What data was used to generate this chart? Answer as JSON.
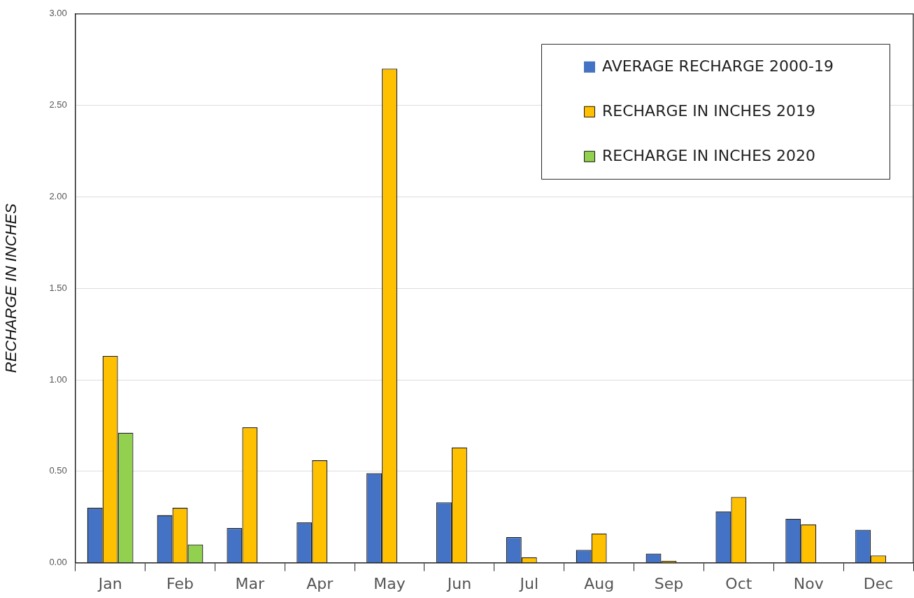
{
  "chart_data": {
    "type": "bar",
    "ylabel": "RECHARGE IN INCHES",
    "categories": [
      "Jan",
      "Feb",
      "Mar",
      "Apr",
      "May",
      "Jun",
      "Jul",
      "Aug",
      "Sep",
      "Oct",
      "Nov",
      "Dec"
    ],
    "series": [
      {
        "name": "AVERAGE RECHARGE 2000-19",
        "color": "#4472c4",
        "values": [
          0.3,
          0.26,
          0.19,
          0.22,
          0.49,
          0.33,
          0.14,
          0.07,
          0.05,
          0.28,
          0.24,
          0.18
        ]
      },
      {
        "name": "RECHARGE IN INCHES 2019",
        "color": "#ffc000",
        "values": [
          1.13,
          0.3,
          0.74,
          0.56,
          2.7,
          0.63,
          0.03,
          0.16,
          0.01,
          0.36,
          0.21,
          0.04
        ]
      },
      {
        "name": "RECHARGE IN INCHES 2020",
        "color": "#92d050",
        "values": [
          0.71,
          0.1,
          null,
          null,
          null,
          null,
          null,
          null,
          null,
          null,
          null,
          null
        ]
      }
    ],
    "ylim": [
      0,
      3
    ],
    "yticks": [
      {
        "value": 0,
        "label": "0.00"
      },
      {
        "value": 0.5,
        "label": "0.50"
      },
      {
        "value": 1,
        "label": "1.00"
      },
      {
        "value": 1.5,
        "label": "1.50"
      },
      {
        "value": 2,
        "label": "2.00"
      },
      {
        "value": 2.5,
        "label": "2.50"
      },
      {
        "value": 3,
        "label": "3.00"
      }
    ],
    "grid": "y",
    "legend": "top right"
  }
}
